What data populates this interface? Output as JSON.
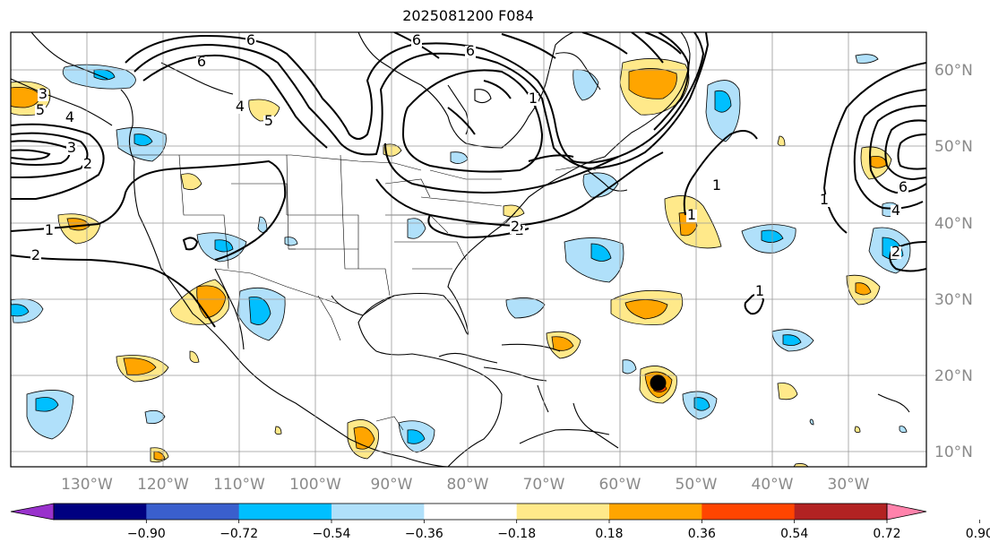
{
  "title": "2025081200 F084",
  "longitude_labels": [
    "130°W",
    "120°W",
    "110°W",
    "100°W",
    "90°W",
    "80°W",
    "70°W",
    "60°W",
    "50°W",
    "40°W",
    "30°W"
  ],
  "latitude_labels": [
    "60°N",
    "50°N",
    "40°N",
    "30°N",
    "20°N",
    "10°N"
  ],
  "colorbar": {
    "tick_labels": [
      "−0.90",
      "−0.72",
      "−0.54",
      "−0.36",
      "−0.18",
      "0.18",
      "0.36",
      "0.54",
      "0.72",
      "0.90"
    ],
    "colors": [
      "#9932cc",
      "#000080",
      "#3a5fcd",
      "#00bfff",
      "#b0e0fa",
      "#ffffff",
      "#ffe98a",
      "#ffa500",
      "#ff4500",
      "#b22222",
      "#ff82ab"
    ]
  },
  "contour_labels": [
    "6",
    "6",
    "6",
    "6",
    "5",
    "5",
    "4",
    "4",
    "3",
    "3",
    "2",
    "2",
    "2",
    "1",
    "1",
    "1",
    "1",
    "1",
    "1",
    "6",
    "4",
    "2",
    "2"
  ],
  "marker": {
    "name": "storm-center",
    "lon": -55,
    "lat": 19
  }
}
